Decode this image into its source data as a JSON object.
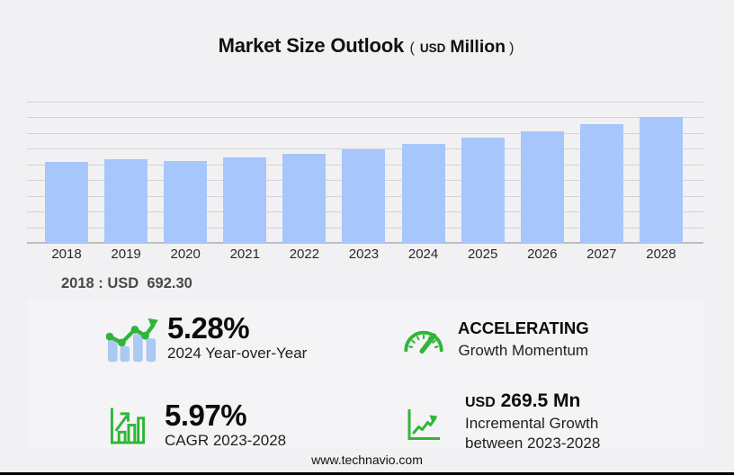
{
  "colors": {
    "background": "#f1f1f3",
    "panel": "#f4f4f6",
    "bar_blue": "#a7c6fb",
    "icon_bar_blue": "#abc9f1",
    "green": "#30b637",
    "gridline": "#d3d3d8",
    "axis_line": "#bdbdc3",
    "title_text": "#111111",
    "annotation_text": "#4a4a4a"
  },
  "title": {
    "main": "Market Size Outlook",
    "paren_open": "(",
    "currency": "USD",
    "unit": "Million",
    "paren_close": ")"
  },
  "chart_data": {
    "type": "bar",
    "title": "Market Size Outlook (USD Million)",
    "categories": [
      "2018",
      "2019",
      "2020",
      "2021",
      "2022",
      "2023",
      "2024",
      "2025",
      "2026",
      "2027",
      "2028"
    ],
    "values": [
      692.3,
      717.4,
      700.2,
      732.7,
      760.8,
      800.7,
      843.0,
      894.8,
      949.7,
      1008.0,
      1070.2
    ],
    "unit": "USD Million",
    "xlabel": "",
    "ylabel": "",
    "ylim": [
      0,
      1200
    ],
    "gridline_count": 10,
    "grid": "horizontal",
    "legend": "none",
    "bar_color": "#a7c6fb"
  },
  "annotation": {
    "base_year_value": "2018 : USD  692.30"
  },
  "stats": {
    "yoy": {
      "icon": "bar-chart-trend-icon",
      "value": "5.28%",
      "label": "2024 Year-over-Year"
    },
    "momentum": {
      "icon": "speedometer-icon",
      "value": "ACCELERATING",
      "label": "Growth Momentum"
    },
    "cagr": {
      "icon": "growth-bars-icon",
      "value": "5.97%",
      "label": "CAGR 2023-2028"
    },
    "incremental": {
      "icon": "line-graph-icon",
      "currency": "USD",
      "value": "269.5 Mn",
      "label_line1": "Incremental Growth",
      "label_line2": "between 2023-2028"
    }
  },
  "footer": {
    "url": "www.technavio.com"
  }
}
